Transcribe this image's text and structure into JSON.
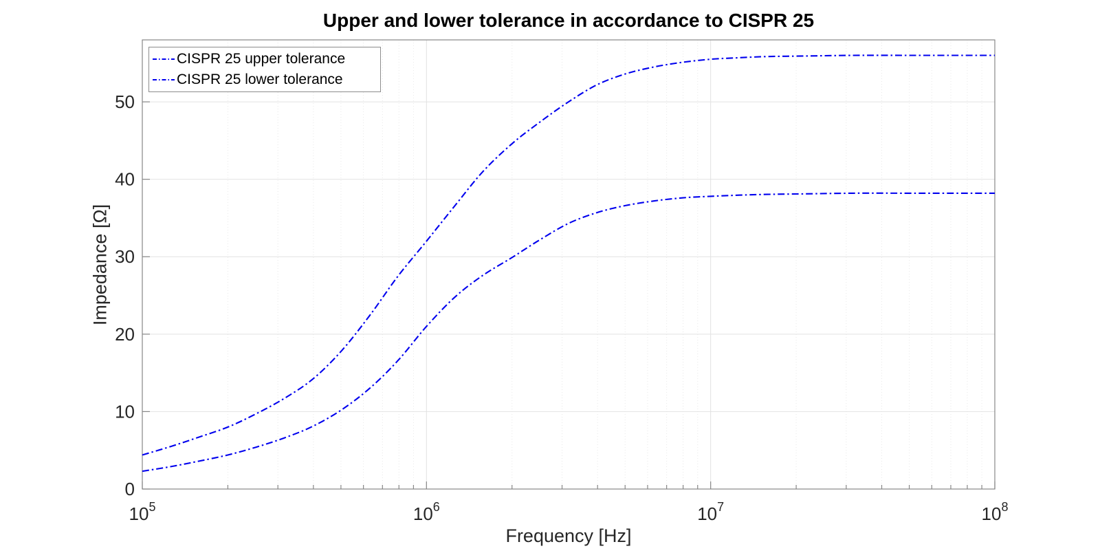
{
  "chart_data": {
    "type": "line",
    "title": "Upper and lower tolerance in accordance to CISPR 25",
    "xlabel": "Frequency [Hz]",
    "ylabel": "Impedance [Ω]",
    "x_scale": "log",
    "x_range": [
      100000,
      100000000
    ],
    "y_range": [
      0,
      58
    ],
    "y_ticks": [
      0,
      10,
      20,
      30,
      40,
      50
    ],
    "x_ticks": [
      {
        "base": "10",
        "exp": "5"
      },
      {
        "base": "10",
        "exp": "6"
      },
      {
        "base": "10",
        "exp": "7"
      },
      {
        "base": "10",
        "exp": "8"
      }
    ],
    "grid": true,
    "minor_grid": true,
    "legend_position": "top-left-inside",
    "line_style": "dash-dot",
    "colors": {
      "series": "#0000ee",
      "major_grid": "#e2e2e2",
      "minor_grid": "#e8e8e8",
      "axis": "#878787",
      "tick_label": "#262626",
      "title": "#000000",
      "legend_border": "#8c8c8c",
      "background": "#ffffff"
    },
    "series": [
      {
        "name": "CISPR 25 upper tolerance",
        "points": [
          [
            100000,
            4.4
          ],
          [
            126000,
            5.5
          ],
          [
            158000,
            6.7
          ],
          [
            200000,
            8.0
          ],
          [
            251000,
            9.7
          ],
          [
            316000,
            11.7
          ],
          [
            398000,
            14.2
          ],
          [
            501000,
            17.8
          ],
          [
            631000,
            22.4
          ],
          [
            794000,
            27.5
          ],
          [
            1000000,
            32.0
          ],
          [
            1260000,
            36.6
          ],
          [
            1580000,
            41.0
          ],
          [
            2000000,
            44.6
          ],
          [
            2510000,
            47.4
          ],
          [
            3160000,
            50.0
          ],
          [
            3980000,
            52.2
          ],
          [
            5010000,
            53.6
          ],
          [
            6310000,
            54.5
          ],
          [
            7940000,
            55.1
          ],
          [
            10000000,
            55.5
          ],
          [
            12600000,
            55.7
          ],
          [
            15800000,
            55.85
          ],
          [
            20000000,
            55.9
          ],
          [
            31600000,
            56.0
          ],
          [
            50100000,
            56.0
          ],
          [
            100000000,
            56.0
          ]
        ]
      },
      {
        "name": "CISPR 25 lower tolerance",
        "points": [
          [
            100000,
            2.3
          ],
          [
            126000,
            2.9
          ],
          [
            158000,
            3.6
          ],
          [
            200000,
            4.4
          ],
          [
            251000,
            5.4
          ],
          [
            316000,
            6.6
          ],
          [
            398000,
            8.1
          ],
          [
            501000,
            10.2
          ],
          [
            631000,
            13.0
          ],
          [
            794000,
            16.6
          ],
          [
            1000000,
            21.0
          ],
          [
            1260000,
            24.8
          ],
          [
            1580000,
            27.6
          ],
          [
            2000000,
            29.9
          ],
          [
            2510000,
            32.2
          ],
          [
            3160000,
            34.3
          ],
          [
            3980000,
            35.7
          ],
          [
            5010000,
            36.6
          ],
          [
            6310000,
            37.2
          ],
          [
            7940000,
            37.6
          ],
          [
            10000000,
            37.8
          ],
          [
            12600000,
            37.95
          ],
          [
            15800000,
            38.05
          ],
          [
            20000000,
            38.1
          ],
          [
            31600000,
            38.2
          ],
          [
            50100000,
            38.2
          ],
          [
            100000000,
            38.2
          ]
        ]
      }
    ]
  }
}
